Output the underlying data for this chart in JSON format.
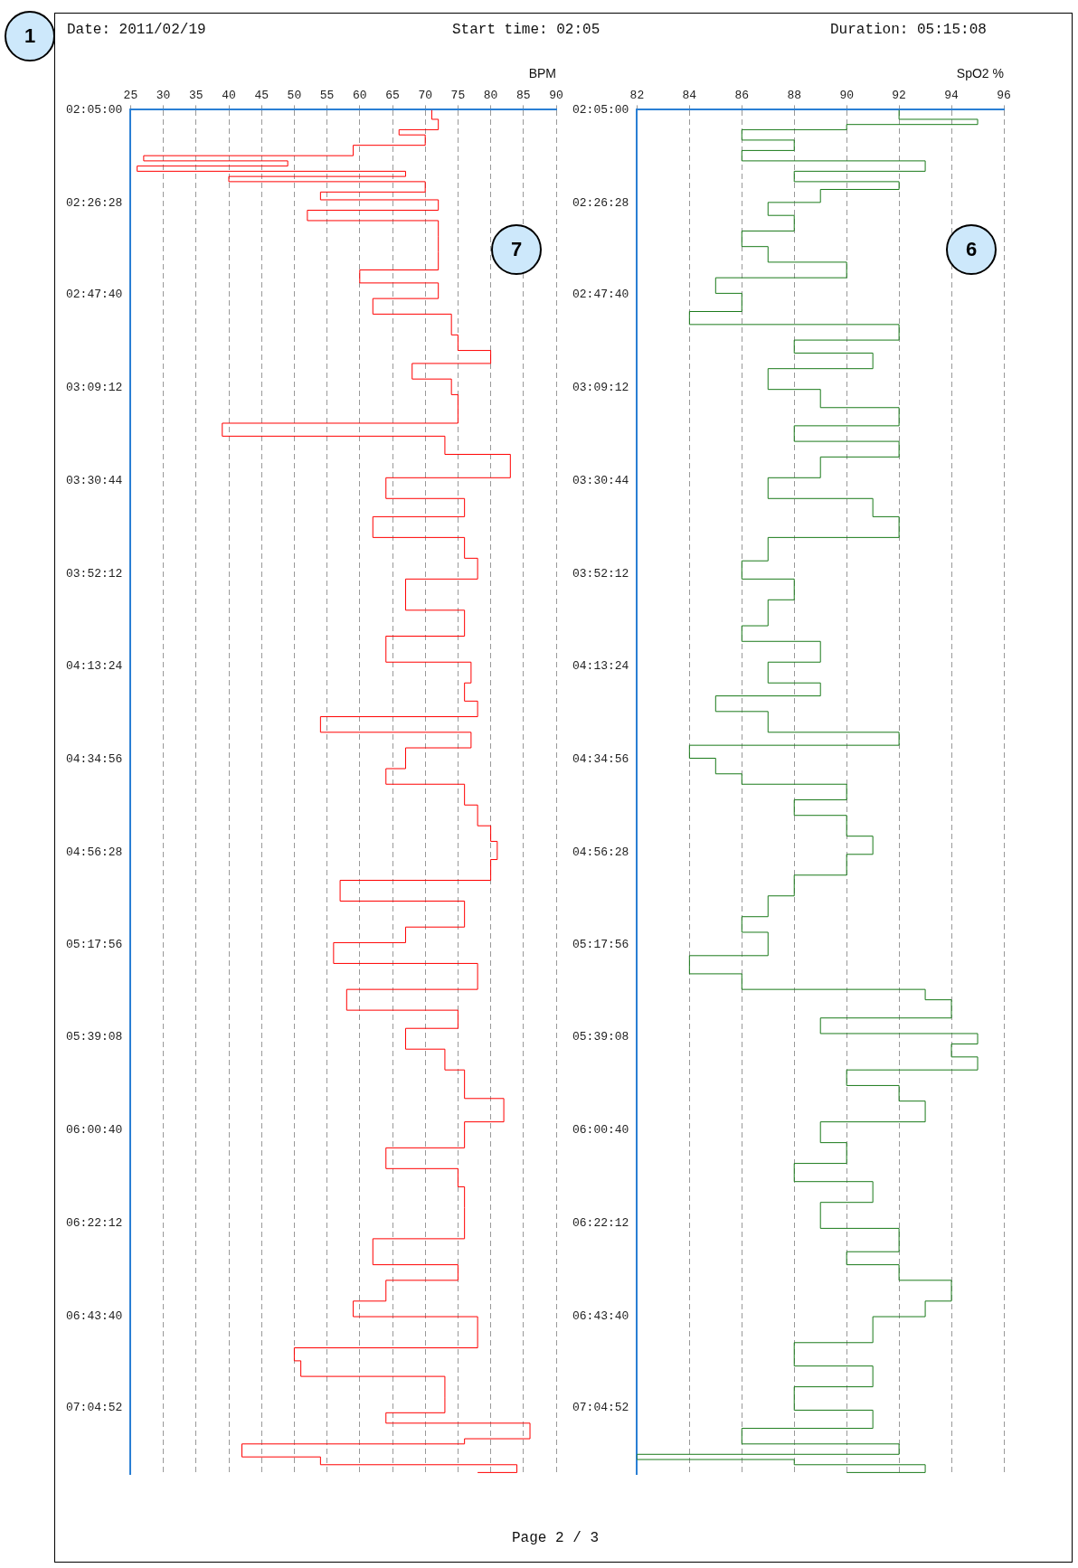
{
  "chart_data": [
    {
      "type": "step",
      "ylabel": "BPM",
      "annotations": [
        "Date: 2011/02/19",
        "Start time: 02:05",
        "Duration: 05:15:08",
        "Page 2 / 3",
        "1",
        "7"
      ],
      "orientation": "horizontal",
      "x": [
        2.0833,
        2.12,
        2.16,
        2.18,
        2.22,
        2.26,
        2.28,
        2.3,
        2.32,
        2.34,
        2.36,
        2.4,
        2.43,
        2.47,
        2.51,
        2.57,
        2.63,
        2.7,
        2.75,
        2.81,
        2.87,
        2.95,
        3.01,
        3.06,
        3.12,
        3.18,
        3.29,
        3.34,
        3.41,
        3.5,
        3.58,
        3.65,
        3.73,
        3.81,
        3.89,
        4.01,
        4.11,
        4.21,
        4.29,
        4.36,
        4.42,
        4.48,
        4.54,
        4.62,
        4.68,
        4.76,
        4.84,
        4.9,
        4.97,
        5.05,
        5.13,
        5.23,
        5.29,
        5.37,
        5.47,
        5.55,
        5.62,
        5.7,
        5.78,
        5.89,
        5.98,
        6.08,
        6.16,
        6.23,
        6.31,
        6.43,
        6.53,
        6.59,
        6.67,
        6.73,
        6.85,
        6.9,
        6.96,
        7.04,
        7.1,
        7.14,
        7.2,
        7.22,
        7.27,
        7.3,
        7.33
      ],
      "values": [
        71,
        72,
        66,
        70,
        59,
        27,
        49,
        26,
        67,
        40,
        70,
        54,
        72,
        52,
        72,
        72,
        72,
        60,
        72,
        62,
        74,
        75,
        80,
        68,
        74,
        75,
        39,
        73,
        83,
        64,
        76,
        62,
        76,
        78,
        67,
        76,
        64,
        77,
        76,
        78,
        54,
        77,
        67,
        64,
        76,
        78,
        80,
        81,
        80,
        57,
        76,
        67,
        56,
        78,
        58,
        75,
        67,
        73,
        76,
        82,
        76,
        64,
        75,
        76,
        76,
        62,
        75,
        64,
        59,
        78,
        50,
        51,
        73,
        73,
        64,
        86,
        76,
        42,
        54,
        84,
        78
      ],
      "color": "#ff0000",
      "ylim": [
        7.3356,
        2.0833
      ],
      "yticks": [
        {
          "value": 2.0833,
          "label": "02:05:00"
        },
        {
          "value": 2.4411,
          "label": "02:26:28"
        },
        {
          "value": 2.7944,
          "label": "02:47:40"
        },
        {
          "value": 3.1533,
          "label": "03:09:12"
        },
        {
          "value": 3.5122,
          "label": "03:30:44"
        },
        {
          "value": 3.87,
          "label": "03:52:12"
        },
        {
          "value": 4.2233,
          "label": "04:13:24"
        },
        {
          "value": 4.5822,
          "label": "04:34:56"
        },
        {
          "value": 4.9411,
          "label": "04:56:28"
        },
        {
          "value": 5.2989,
          "label": "05:17:56"
        },
        {
          "value": 5.6522,
          "label": "05:39:08"
        },
        {
          "value": 6.0111,
          "label": "06:00:40"
        },
        {
          "value": 6.37,
          "label": "06:22:12"
        },
        {
          "value": 6.7278,
          "label": "06:43:40"
        },
        {
          "value": 7.0811,
          "label": "07:04:52"
        }
      ],
      "xlim": [
        25,
        90
      ],
      "xticks": [
        25,
        30,
        35,
        40,
        45,
        50,
        55,
        60,
        65,
        70,
        75,
        80,
        85,
        90
      ],
      "grid": "x",
      "marker": "none",
      "line_style": "solid",
      "legend": false
    },
    {
      "type": "step",
      "ylabel": "SpO2 %",
      "annotations": [
        "6"
      ],
      "orientation": "horizontal",
      "x": [
        2.0833,
        2.12,
        2.14,
        2.16,
        2.2,
        2.24,
        2.28,
        2.32,
        2.36,
        2.39,
        2.44,
        2.49,
        2.55,
        2.61,
        2.67,
        2.73,
        2.79,
        2.86,
        2.91,
        2.97,
        3.02,
        3.08,
        3.16,
        3.23,
        3.3,
        3.36,
        3.42,
        3.5,
        3.58,
        3.65,
        3.73,
        3.82,
        3.89,
        3.97,
        4.07,
        4.13,
        4.21,
        4.29,
        4.34,
        4.4,
        4.48,
        4.53,
        4.58,
        4.64,
        4.68,
        4.74,
        4.8,
        4.88,
        4.95,
        5.03,
        5.11,
        5.19,
        5.25,
        5.34,
        5.41,
        5.47,
        5.51,
        5.58,
        5.64,
        5.68,
        5.73,
        5.78,
        5.84,
        5.9,
        5.98,
        6.06,
        6.14,
        6.21,
        6.29,
        6.39,
        6.48,
        6.53,
        6.59,
        6.67,
        6.73,
        6.83,
        6.92,
        7.0,
        7.09,
        7.16,
        7.22,
        7.26,
        7.28,
        7.3,
        7.33
      ],
      "values": [
        92,
        95,
        90,
        86,
        88,
        86,
        93,
        88,
        92,
        89,
        87,
        88,
        86,
        87,
        90,
        85,
        86,
        84,
        92,
        88,
        91,
        87,
        89,
        92,
        88,
        92,
        89,
        87,
        91,
        92,
        87,
        86,
        88,
        87,
        86,
        89,
        87,
        89,
        85,
        87,
        92,
        84,
        85,
        86,
        90,
        88,
        90,
        91,
        90,
        88,
        87,
        86,
        87,
        84,
        86,
        93,
        94,
        89,
        95,
        94,
        95,
        90,
        92,
        93,
        89,
        90,
        88,
        91,
        89,
        92,
        90,
        92,
        94,
        93,
        91,
        88,
        91,
        88,
        91,
        86,
        92,
        82,
        88,
        93,
        90
      ],
      "color": "#1a7a1a",
      "ylim": [
        7.3356,
        2.0833
      ],
      "yticks": [
        {
          "value": 2.0833,
          "label": "02:05:00"
        },
        {
          "value": 2.4411,
          "label": "02:26:28"
        },
        {
          "value": 2.7944,
          "label": "02:47:40"
        },
        {
          "value": 3.1533,
          "label": "03:09:12"
        },
        {
          "value": 3.5122,
          "label": "03:30:44"
        },
        {
          "value": 3.87,
          "label": "03:52:12"
        },
        {
          "value": 4.2233,
          "label": "04:13:24"
        },
        {
          "value": 4.5822,
          "label": "04:34:56"
        },
        {
          "value": 4.9411,
          "label": "04:56:28"
        },
        {
          "value": 5.2989,
          "label": "05:17:56"
        },
        {
          "value": 5.6522,
          "label": "05:39:08"
        },
        {
          "value": 6.0111,
          "label": "06:00:40"
        },
        {
          "value": 6.37,
          "label": "06:22:12"
        },
        {
          "value": 6.7278,
          "label": "06:43:40"
        },
        {
          "value": 7.0811,
          "label": "07:04:52"
        }
      ],
      "xlim": [
        82,
        96
      ],
      "xticks": [
        82,
        84,
        86,
        88,
        90,
        92,
        94,
        96
      ],
      "grid": "x",
      "marker": "none",
      "line_style": "solid",
      "legend": false
    }
  ]
}
